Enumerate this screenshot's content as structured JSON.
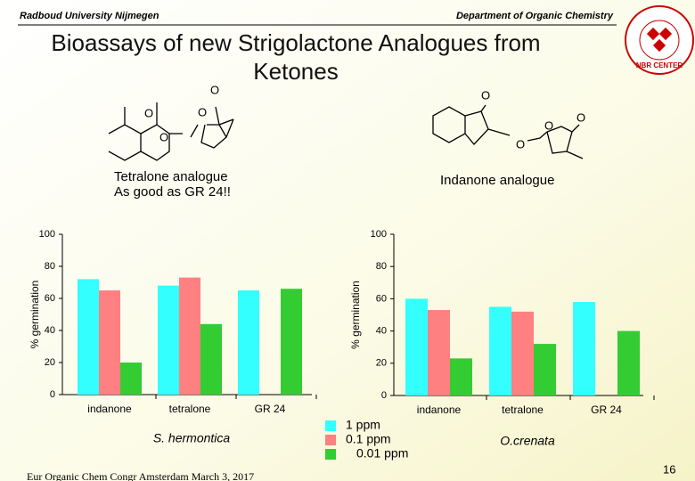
{
  "header": {
    "left": "Radboud University Nijmegen",
    "right": "Department of Organic Chemistry"
  },
  "title": [
    "Bioassays of new Strigolactone Analogues from",
    "Ketones"
  ],
  "structures": [
    {
      "atoms": [
        "O",
        "O",
        "O",
        "O"
      ],
      "label": [
        "Tetralone analogue",
        "As good as GR 24!!"
      ]
    },
    {
      "atoms": [
        "O",
        "O",
        "O",
        "O"
      ],
      "label": [
        "Indanone analogue"
      ]
    }
  ],
  "logo": "NBR CENTER",
  "chart_data": [
    {
      "type": "bar",
      "caption": "S. hermontica",
      "y_label": "% germination",
      "categories": [
        "indanone",
        "tetralone",
        "GR 24"
      ],
      "series": [
        {
          "color": "#33ffff",
          "values": [
            72,
            68,
            65
          ]
        },
        {
          "color": "#ff8080",
          "values": [
            65,
            73,
            null
          ]
        },
        {
          "color": "#33cc33",
          "values": [
            20,
            44,
            66
          ]
        }
      ],
      "ylim": [
        0,
        100
      ],
      "yticks": [
        0,
        20,
        40,
        60,
        80,
        100
      ]
    },
    {
      "type": "bar",
      "caption": "O.crenata",
      "y_label": "% germination",
      "categories": [
        "indanone",
        "tetralone",
        "GR 24"
      ],
      "series": [
        {
          "name": "1 ppm",
          "color": "#33ffff",
          "values": [
            60,
            55,
            58
          ]
        },
        {
          "name": "0.1 ppm",
          "color": "#ff8080",
          "values": [
            53,
            52,
            null
          ]
        },
        {
          "name": "0.01 ppm",
          "color": "#33cc33",
          "values": [
            23,
            32,
            40
          ]
        }
      ],
      "ylim": [
        0,
        100
      ],
      "yticks": [
        0,
        20,
        40,
        60,
        80,
        100
      ]
    }
  ],
  "footer": {
    "left": "Eur Organic Chem Congr Amsterdam  March 3, 2017",
    "page": "16"
  }
}
